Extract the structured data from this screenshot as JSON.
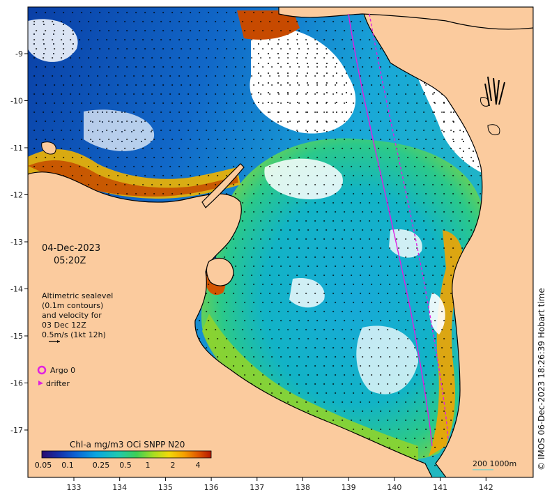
{
  "map": {
    "date": "04-Dec-2023",
    "time": "05:20Z",
    "sealevel_note": [
      "Altimetric sealevel",
      "(0.1m contours)",
      "and velocity for",
      "03 Dec 12Z",
      "0.5m/s (1kt 12h)"
    ],
    "legend": {
      "argo": "Argo 0",
      "drifter": "drifter"
    },
    "colorbar": {
      "title": "Chl-a mg/m3 OCi SNPP N20",
      "ticks": [
        "0.05",
        "0.1",
        "0.25",
        "0.5",
        "1",
        "2",
        "4"
      ],
      "colors": [
        "#2a0a6e",
        "#1530a8",
        "#0c62d4",
        "#0aa5e0",
        "#1fc9b0",
        "#3ecf55",
        "#a8dd22",
        "#f1d90a",
        "#f5a000",
        "#e05a00",
        "#b51800"
      ]
    },
    "scale_label": "200  1000m",
    "copyright": "© IMOS 06-Dec-2023 18:26:39 Hobart time",
    "x_ticks": [
      {
        "value": 133,
        "label": "133"
      },
      {
        "value": 134,
        "label": "134"
      },
      {
        "value": 135,
        "label": "135"
      },
      {
        "value": 136,
        "label": "136"
      },
      {
        "value": 137,
        "label": "137"
      },
      {
        "value": 138,
        "label": "138"
      },
      {
        "value": 139,
        "label": "139"
      },
      {
        "value": 140,
        "label": "140"
      },
      {
        "value": 141,
        "label": "141"
      },
      {
        "value": 142,
        "label": "142"
      }
    ],
    "y_ticks": [
      {
        "value": -9,
        "label": "-9"
      },
      {
        "value": -10,
        "label": "-10"
      },
      {
        "value": -11,
        "label": "-11"
      },
      {
        "value": -12,
        "label": "-12"
      },
      {
        "value": -13,
        "label": "-13"
      },
      {
        "value": -14,
        "label": "-14"
      },
      {
        "value": -15,
        "label": "-15"
      },
      {
        "value": -16,
        "label": "-16"
      },
      {
        "value": -17,
        "label": "-17"
      }
    ],
    "colors": {
      "land": "#fbcb9e",
      "coast": "#000000",
      "track": "#e020e0",
      "ocean_deep": "#0a3fa6"
    }
  }
}
